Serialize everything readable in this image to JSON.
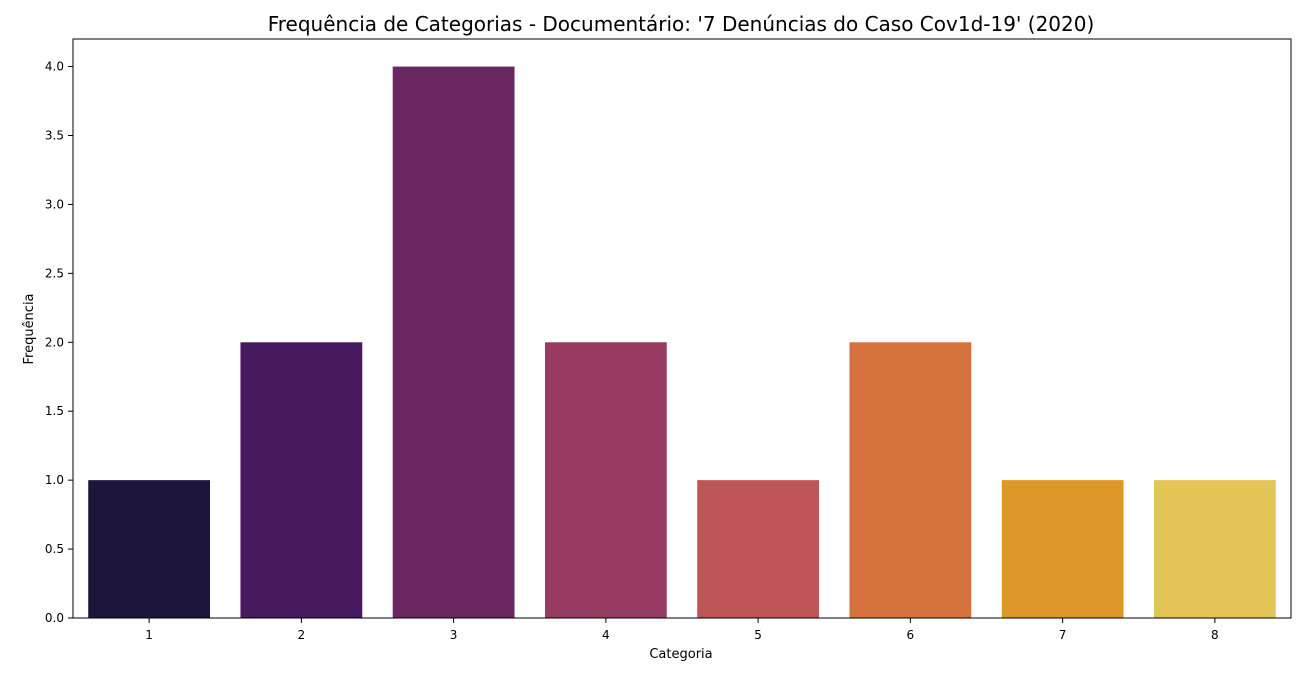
{
  "chart_data": {
    "type": "bar",
    "title": "Frequência de Categorias - Documentário: '7 Denúncias do Caso Cov1d-19' (2020)",
    "xlabel": "Categoria",
    "ylabel": "Frequência",
    "categories": [
      "1",
      "2",
      "3",
      "4",
      "5",
      "6",
      "7",
      "8"
    ],
    "values": [
      1,
      2,
      4,
      2,
      1,
      2,
      1,
      1
    ],
    "ylim": [
      0,
      4.2
    ],
    "yticks": [
      0.0,
      0.5,
      1.0,
      1.5,
      2.0,
      2.5,
      3.0,
      3.5,
      4.0
    ],
    "ytick_labels": [
      "0.0",
      "0.5",
      "1.0",
      "1.5",
      "2.0",
      "2.5",
      "3.0",
      "3.5",
      "4.0"
    ],
    "grid": false,
    "legend": "none",
    "colors": [
      "#1e153a",
      "#47195f",
      "#6b2761",
      "#973b63",
      "#be5658",
      "#d5723e",
      "#dd9628",
      "#e2c556"
    ]
  }
}
